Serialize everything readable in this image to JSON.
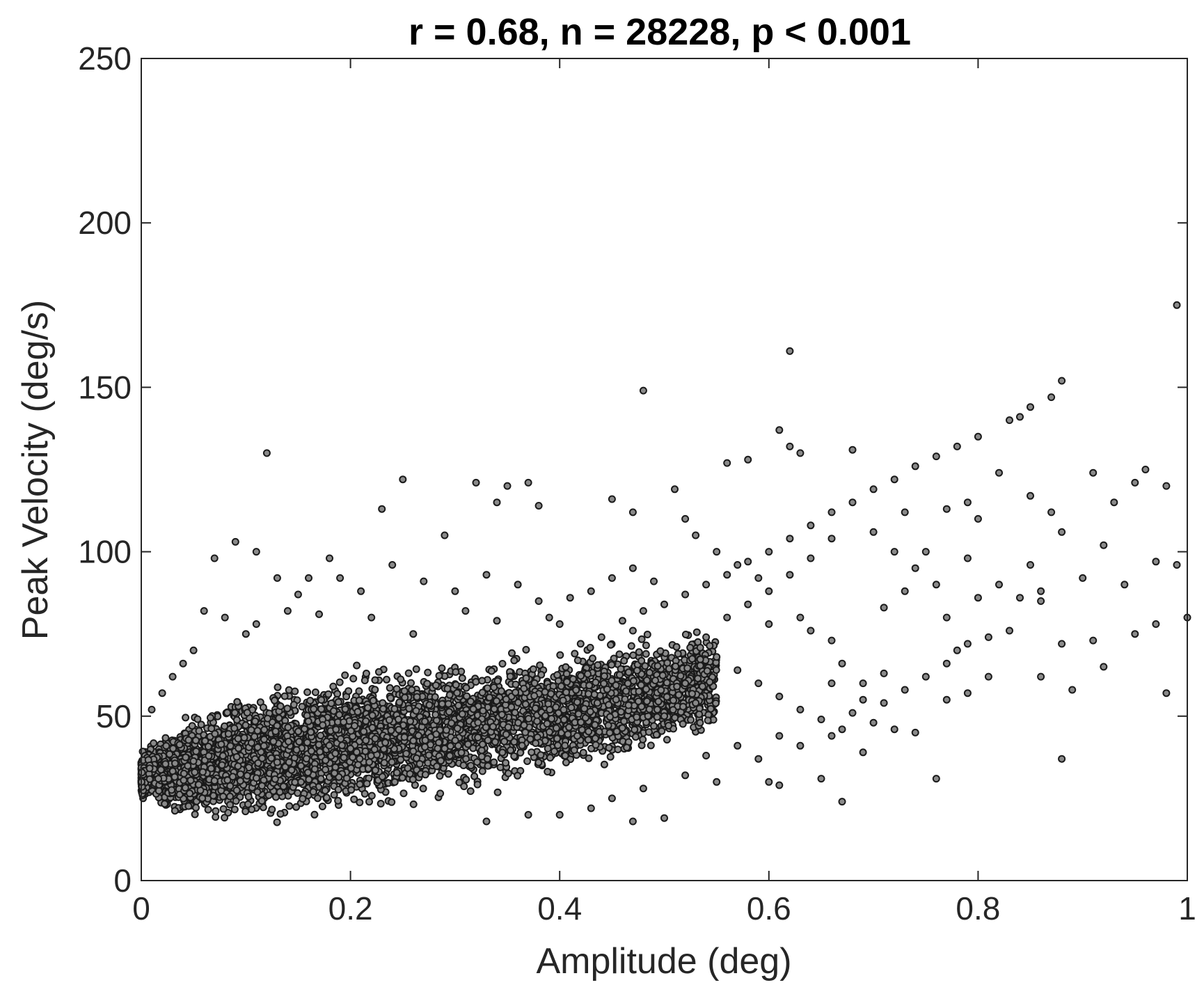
{
  "chart_data": {
    "type": "scatter",
    "title": "r = 0.68, n = 28228, p < 0.001",
    "xlabel": "Amplitude (deg)",
    "ylabel": "Peak Velocity (deg/s)",
    "xlim": [
      0,
      1
    ],
    "ylim": [
      0,
      250
    ],
    "xticks": [
      0,
      0.2,
      0.4,
      0.6,
      0.8,
      1
    ],
    "xtick_labels": [
      "0",
      "0.2",
      "0.4",
      "0.6",
      "0.8",
      "1"
    ],
    "yticks": [
      0,
      50,
      100,
      150,
      200,
      250
    ],
    "ytick_labels": [
      "0",
      "50",
      "100",
      "150",
      "200",
      "250"
    ],
    "grid": false,
    "marker_fill": "#8a8a8a",
    "marker_edge": "#1a1a1a",
    "series": [
      {
        "points": [
          [
            0.99,
            175
          ],
          [
            0.62,
            161
          ],
          [
            0.48,
            149
          ],
          [
            0.12,
            130
          ],
          [
            0.88,
            152
          ],
          [
            0.87,
            147
          ],
          [
            0.85,
            144
          ],
          [
            0.8,
            135
          ],
          [
            0.78,
            132
          ],
          [
            0.76,
            129
          ],
          [
            0.74,
            126
          ],
          [
            0.72,
            122
          ],
          [
            0.7,
            119
          ],
          [
            0.68,
            115
          ],
          [
            0.66,
            112
          ],
          [
            0.64,
            108
          ],
          [
            0.62,
            104
          ],
          [
            0.6,
            100
          ],
          [
            0.58,
            97
          ],
          [
            0.56,
            93
          ],
          [
            0.54,
            90
          ],
          [
            0.52,
            87
          ],
          [
            0.5,
            84
          ],
          [
            0.48,
            82
          ],
          [
            0.46,
            79
          ],
          [
            0.83,
            140
          ],
          [
            0.84,
            141
          ],
          [
            0.82,
            124
          ],
          [
            0.25,
            122
          ],
          [
            0.32,
            121
          ],
          [
            0.35,
            120
          ],
          [
            0.37,
            121
          ],
          [
            0.23,
            113
          ],
          [
            0.34,
            115
          ],
          [
            0.38,
            114
          ],
          [
            0.29,
            105
          ],
          [
            0.09,
            103
          ],
          [
            0.07,
            98
          ],
          [
            0.11,
            100
          ],
          [
            0.18,
            98
          ],
          [
            0.45,
            116
          ],
          [
            0.47,
            112
          ],
          [
            0.51,
            119
          ],
          [
            0.52,
            110
          ],
          [
            0.56,
            127
          ],
          [
            0.58,
            128
          ],
          [
            0.61,
            137
          ],
          [
            0.62,
            132
          ],
          [
            0.63,
            130
          ],
          [
            0.68,
            131
          ],
          [
            0.91,
            124
          ],
          [
            0.96,
            125
          ],
          [
            0.95,
            121
          ],
          [
            0.98,
            120
          ],
          [
            0.93,
            115
          ],
          [
            0.97,
            97
          ],
          [
            0.99,
            96
          ],
          [
            0.92,
            102
          ],
          [
            0.94,
            90
          ],
          [
            0.9,
            92
          ],
          [
            1.0,
            80
          ],
          [
            0.97,
            78
          ],
          [
            0.95,
            75
          ],
          [
            0.91,
            73
          ],
          [
            0.88,
            72
          ],
          [
            0.86,
            62
          ],
          [
            0.92,
            65
          ],
          [
            0.98,
            57
          ],
          [
            0.89,
            58
          ],
          [
            0.88,
            37
          ],
          [
            0.76,
            31
          ],
          [
            0.67,
            24
          ],
          [
            0.65,
            31
          ],
          [
            0.69,
            39
          ],
          [
            0.6,
            30
          ],
          [
            0.61,
            29
          ],
          [
            0.8,
            110
          ],
          [
            0.79,
            98
          ],
          [
            0.82,
            90
          ],
          [
            0.84,
            86
          ],
          [
            0.86,
            85
          ],
          [
            0.83,
            76
          ],
          [
            0.81,
            74
          ],
          [
            0.78,
            70
          ],
          [
            0.77,
            66
          ],
          [
            0.75,
            62
          ],
          [
            0.73,
            58
          ],
          [
            0.71,
            54
          ],
          [
            0.69,
            60
          ],
          [
            0.67,
            66
          ],
          [
            0.66,
            73
          ],
          [
            0.64,
            76
          ],
          [
            0.63,
            80
          ],
          [
            0.71,
            83
          ],
          [
            0.73,
            88
          ],
          [
            0.74,
            95
          ],
          [
            0.72,
            100
          ],
          [
            0.7,
            106
          ],
          [
            0.66,
            104
          ],
          [
            0.64,
            98
          ],
          [
            0.62,
            93
          ],
          [
            0.6,
            88
          ],
          [
            0.58,
            84
          ],
          [
            0.56,
            80
          ],
          [
            0.54,
            74
          ],
          [
            0.55,
            68
          ],
          [
            0.57,
            64
          ],
          [
            0.59,
            60
          ],
          [
            0.61,
            56
          ],
          [
            0.63,
            52
          ],
          [
            0.65,
            49
          ],
          [
            0.67,
            46
          ],
          [
            0.7,
            48
          ],
          [
            0.72,
            46
          ],
          [
            0.74,
            45
          ],
          [
            0.52,
            60
          ],
          [
            0.53,
            54
          ],
          [
            0.5,
            50
          ],
          [
            0.49,
            47
          ],
          [
            0.53,
            105
          ],
          [
            0.55,
            100
          ],
          [
            0.57,
            96
          ],
          [
            0.59,
            92
          ],
          [
            0.47,
            76
          ],
          [
            0.44,
            74
          ],
          [
            0.42,
            72
          ],
          [
            0.4,
            78
          ],
          [
            0.38,
            85
          ],
          [
            0.36,
            90
          ],
          [
            0.33,
            93
          ],
          [
            0.3,
            88
          ],
          [
            0.27,
            91
          ],
          [
            0.24,
            96
          ],
          [
            0.21,
            88
          ],
          [
            0.19,
            92
          ],
          [
            0.16,
            92
          ],
          [
            0.14,
            82
          ],
          [
            0.13,
            92
          ],
          [
            0.17,
            81
          ],
          [
            0.15,
            87
          ],
          [
            0.1,
            75
          ],
          [
            0.08,
            80
          ],
          [
            0.06,
            82
          ],
          [
            0.05,
            70
          ],
          [
            0.04,
            66
          ],
          [
            0.03,
            62
          ],
          [
            0.02,
            57
          ],
          [
            0.01,
            52
          ],
          [
            0.11,
            78
          ],
          [
            0.22,
            80
          ],
          [
            0.26,
            75
          ],
          [
            0.31,
            82
          ],
          [
            0.34,
            79
          ],
          [
            0.39,
            80
          ],
          [
            0.41,
            86
          ],
          [
            0.43,
            88
          ],
          [
            0.45,
            92
          ],
          [
            0.47,
            95
          ],
          [
            0.49,
            91
          ],
          [
            0.4,
            20
          ],
          [
            0.37,
            20
          ],
          [
            0.33,
            18
          ],
          [
            0.47,
            18
          ],
          [
            0.5,
            19
          ],
          [
            0.43,
            22
          ],
          [
            0.45,
            25
          ],
          [
            0.48,
            28
          ],
          [
            0.52,
            32
          ],
          [
            0.55,
            30
          ],
          [
            0.54,
            38
          ],
          [
            0.57,
            41
          ],
          [
            0.59,
            37
          ],
          [
            0.61,
            44
          ],
          [
            0.63,
            41
          ],
          [
            0.66,
            44
          ],
          [
            0.68,
            51
          ],
          [
            0.69,
            55
          ],
          [
            0.77,
            80
          ],
          [
            0.79,
            72
          ],
          [
            0.8,
            86
          ],
          [
            0.76,
            90
          ],
          [
            0.75,
            100
          ],
          [
            0.77,
            113
          ],
          [
            0.79,
            115
          ],
          [
            0.73,
            112
          ],
          [
            0.85,
            117
          ],
          [
            0.87,
            112
          ],
          [
            0.88,
            106
          ],
          [
            0.85,
            96
          ],
          [
            0.86,
            88
          ],
          [
            0.81,
            62
          ],
          [
            0.79,
            57
          ],
          [
            0.77,
            55
          ],
          [
            0.71,
            63
          ],
          [
            0.66,
            60
          ],
          [
            0.6,
            78
          ]
        ]
      }
    ],
    "dense_region": {
      "x_min": 0.0,
      "x_max": 0.55,
      "lower_bound": [
        [
          0.0,
          24
        ],
        [
          0.05,
          15
        ],
        [
          0.1,
          15
        ],
        [
          0.2,
          19
        ],
        [
          0.3,
          23
        ],
        [
          0.4,
          29
        ],
        [
          0.5,
          37
        ],
        [
          0.55,
          41
        ]
      ],
      "upper_bound": [
        [
          0.0,
          40
        ],
        [
          0.05,
          52
        ],
        [
          0.1,
          60
        ],
        [
          0.2,
          66
        ],
        [
          0.3,
          70
        ],
        [
          0.4,
          74
        ],
        [
          0.5,
          78
        ],
        [
          0.55,
          80
        ]
      ]
    }
  }
}
